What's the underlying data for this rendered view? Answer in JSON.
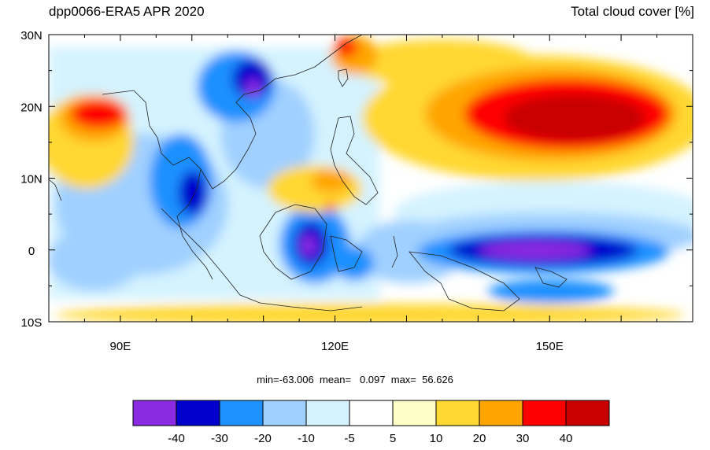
{
  "header": {
    "left_title": "dpp0066-ERA5 APR 2020",
    "right_title": "Total cloud cover [%]"
  },
  "axes": {
    "lat_labels": [
      "30N",
      "20N",
      "10N",
      "0",
      "10S"
    ],
    "lon_labels": [
      "90E",
      "120E",
      "150E"
    ]
  },
  "stats": {
    "min_label": "min=",
    "min": "-63.006",
    "mean_label": "mean=",
    "mean": "0.097",
    "max_label": "max=",
    "max": "56.626"
  },
  "colorbar": {
    "colors": [
      "#8a2be2",
      "#0000cd",
      "#1e90ff",
      "#a0d0ff",
      "#d4f3ff",
      "#ffffff",
      "#ffffc8",
      "#ffd833",
      "#ffa500",
      "#ff0000",
      "#c80000"
    ],
    "labels": [
      "-40",
      "-30",
      "-20",
      "-10",
      "-5",
      "5",
      "10",
      "20",
      "30",
      "40"
    ]
  }
}
